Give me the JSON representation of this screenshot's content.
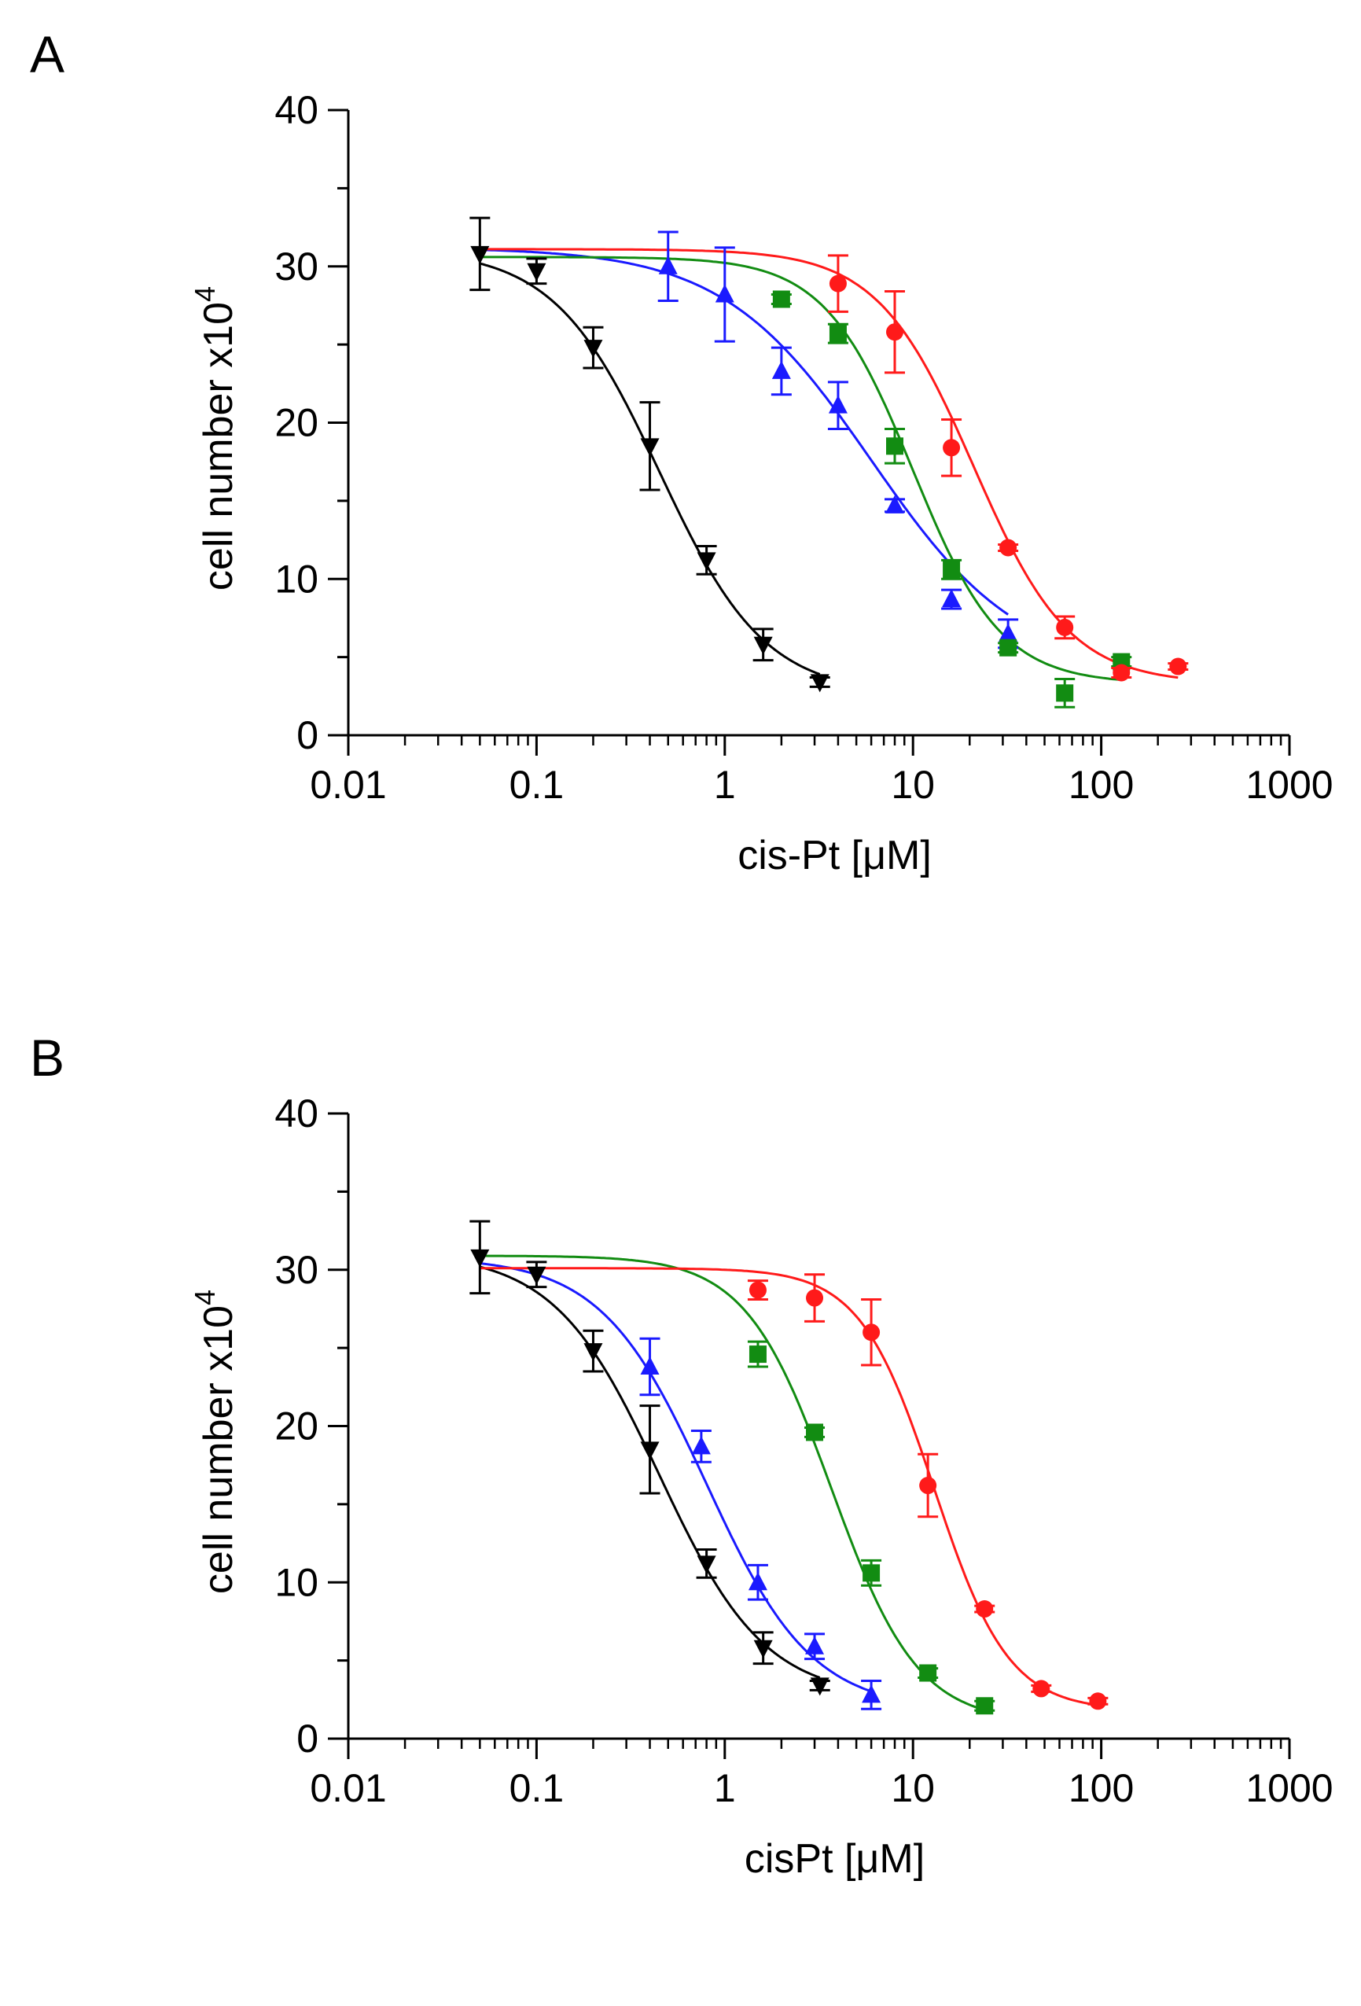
{
  "chart_data": [
    {
      "panel_label": "A",
      "type": "scatter",
      "xscale": "log",
      "xlabel": "cis-Pt [μM]",
      "ylabel_main": "cell number x10",
      "ylabel_exp": "4",
      "xlim": [
        0.01,
        1000
      ],
      "ylim": [
        0,
        40
      ],
      "xticks": [
        {
          "value": 0.01,
          "label": "0.01"
        },
        {
          "value": 0.1,
          "label": "0.1"
        },
        {
          "value": 1,
          "label": "1"
        },
        {
          "value": 10,
          "label": "10"
        },
        {
          "value": 100,
          "label": "100"
        },
        {
          "value": 1000,
          "label": "1000"
        }
      ],
      "yticks": [
        {
          "value": 0,
          "label": "0"
        },
        {
          "value": 10,
          "label": "10"
        },
        {
          "value": 20,
          "label": "20"
        },
        {
          "value": 30,
          "label": "30"
        },
        {
          "value": 40,
          "label": "40"
        }
      ],
      "series": [
        {
          "name": "black",
          "color": "#000000",
          "marker": "triangle-down",
          "x": [
            0.05,
            0.1,
            0.2,
            0.4,
            0.8,
            1.6,
            3.2
          ],
          "y": [
            30.8,
            29.7,
            24.8,
            18.5,
            11.2,
            5.8,
            3.4
          ],
          "err": [
            2.3,
            0.8,
            1.3,
            2.8,
            0.9,
            1.0,
            0.3
          ],
          "fit": {
            "top": 31.1,
            "bottom": 2.6,
            "ec50": 0.45,
            "hill": 1.55,
            "xmin": 0.05,
            "xmax": 3.2
          }
        },
        {
          "name": "blue",
          "color": "#1a1aff",
          "marker": "triangle-up",
          "x": [
            0.5,
            1,
            2,
            4,
            8,
            16,
            32
          ],
          "y": [
            30.0,
            28.2,
            23.3,
            21.1,
            14.7,
            8.7,
            6.5
          ],
          "err": [
            2.2,
            3.0,
            1.5,
            1.5,
            0.4,
            0.6,
            0.9
          ],
          "fit": {
            "top": 31.2,
            "bottom": 4.0,
            "ec50": 6.0,
            "hill": 1.1,
            "xmin": 0.05,
            "xmax": 32
          }
        },
        {
          "name": "green",
          "color": "#128c12",
          "marker": "square",
          "x": [
            2,
            4,
            8,
            16,
            32,
            64,
            128
          ],
          "y": [
            27.9,
            25.7,
            18.5,
            10.6,
            5.6,
            2.7,
            4.7
          ],
          "err": [
            0.3,
            0.6,
            1.1,
            0.6,
            0.3,
            0.9,
            0.3
          ],
          "fit": {
            "top": 30.6,
            "bottom": 3.3,
            "ec50": 10.0,
            "hill": 1.85,
            "xmin": 0.05,
            "xmax": 128
          }
        },
        {
          "name": "red",
          "color": "#ff1a1a",
          "marker": "circle",
          "x": [
            4,
            8,
            16,
            32,
            64,
            128,
            256
          ],
          "y": [
            28.9,
            25.8,
            18.4,
            12.0,
            6.9,
            4.0,
            4.4
          ],
          "err": [
            1.8,
            2.6,
            1.8,
            0.2,
            0.7,
            0.3,
            0.2
          ],
          "fit": {
            "top": 31.1,
            "bottom": 3.3,
            "ec50": 21.0,
            "hill": 1.7,
            "xmin": 0.05,
            "xmax": 256
          }
        }
      ]
    },
    {
      "panel_label": "B",
      "type": "scatter",
      "xscale": "log",
      "xlabel": "cisPt [μM]",
      "ylabel_main": "cell number x10",
      "ylabel_exp": "4",
      "xlim": [
        0.01,
        1000
      ],
      "ylim": [
        0,
        40
      ],
      "xticks": [
        {
          "value": 0.01,
          "label": "0.01"
        },
        {
          "value": 0.1,
          "label": "0.1"
        },
        {
          "value": 1,
          "label": "1"
        },
        {
          "value": 10,
          "label": "10"
        },
        {
          "value": 100,
          "label": "100"
        },
        {
          "value": 1000,
          "label": "1000"
        }
      ],
      "yticks": [
        {
          "value": 0,
          "label": "0"
        },
        {
          "value": 10,
          "label": "10"
        },
        {
          "value": 20,
          "label": "20"
        },
        {
          "value": 30,
          "label": "30"
        },
        {
          "value": 40,
          "label": "40"
        }
      ],
      "series": [
        {
          "name": "black",
          "color": "#000000",
          "marker": "triangle-down",
          "x": [
            0.05,
            0.1,
            0.2,
            0.4,
            0.8,
            1.6,
            3.2
          ],
          "y": [
            30.8,
            29.7,
            24.8,
            18.5,
            11.2,
            5.8,
            3.4
          ],
          "err": [
            2.3,
            0.8,
            1.3,
            2.8,
            0.9,
            1.0,
            0.3
          ],
          "fit": {
            "top": 31.1,
            "bottom": 2.6,
            "ec50": 0.45,
            "hill": 1.55,
            "xmin": 0.05,
            "xmax": 3.2
          }
        },
        {
          "name": "blue",
          "color": "#1a1aff",
          "marker": "triangle-up",
          "x": [
            0.4,
            0.75,
            1.5,
            3,
            6
          ],
          "y": [
            23.8,
            18.7,
            10.0,
            5.9,
            2.8
          ],
          "err": [
            1.8,
            1.0,
            1.1,
            0.8,
            0.9
          ],
          "fit": {
            "top": 30.8,
            "bottom": 1.8,
            "ec50": 0.8,
            "hill": 1.55,
            "xmin": 0.05,
            "xmax": 6
          }
        },
        {
          "name": "green",
          "color": "#128c12",
          "marker": "square",
          "x": [
            1.5,
            3,
            6,
            12,
            24
          ],
          "y": [
            24.6,
            19.6,
            10.6,
            4.2,
            2.1
          ],
          "err": [
            0.8,
            0.3,
            0.8,
            0.3,
            0.3
          ],
          "fit": {
            "top": 30.9,
            "bottom": 1.0,
            "ec50": 3.7,
            "hill": 1.9,
            "xmin": 0.05,
            "xmax": 24
          }
        },
        {
          "name": "red",
          "color": "#ff1a1a",
          "marker": "circle",
          "x": [
            1.5,
            3,
            6,
            12,
            24,
            48,
            96
          ],
          "y": [
            28.7,
            28.2,
            26.0,
            16.2,
            8.3,
            3.2,
            2.4
          ],
          "err": [
            0.6,
            1.5,
            2.1,
            2.0,
            0.2,
            0.2,
            0.2
          ],
          "fit": {
            "top": 30.1,
            "bottom": 1.8,
            "ec50": 13.0,
            "hill": 2.2,
            "xmin": 0.05,
            "xmax": 96
          }
        }
      ]
    }
  ]
}
